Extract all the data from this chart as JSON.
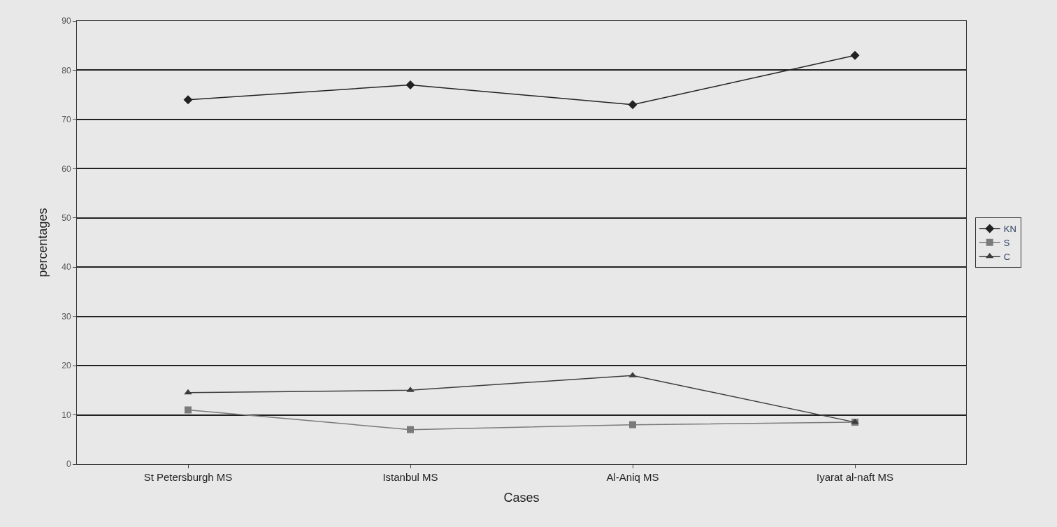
{
  "chart_data": {
    "type": "line",
    "xlabel": "Cases",
    "ylabel": "percentages",
    "categories": [
      "St Petersburgh MS",
      "Istanbul MS",
      "Al-Aniq MS",
      "Iyarat al-naft MS"
    ],
    "series": [
      {
        "name": "KN",
        "color": "#222222",
        "marker": "diamond",
        "values": [
          74,
          77,
          73,
          83
        ]
      },
      {
        "name": "S",
        "color": "#7a7a7a",
        "marker": "square",
        "values": [
          11,
          7,
          8,
          8.5
        ]
      },
      {
        "name": "C",
        "color": "#3c3c3c",
        "marker": "triangle",
        "values": [
          14.5,
          15,
          18,
          8.5
        ]
      }
    ],
    "ylim": [
      0,
      90
    ],
    "yticks": [
      0,
      10,
      20,
      30,
      40,
      50,
      60,
      70,
      80,
      90
    ],
    "grid": "y",
    "legend": "right"
  }
}
